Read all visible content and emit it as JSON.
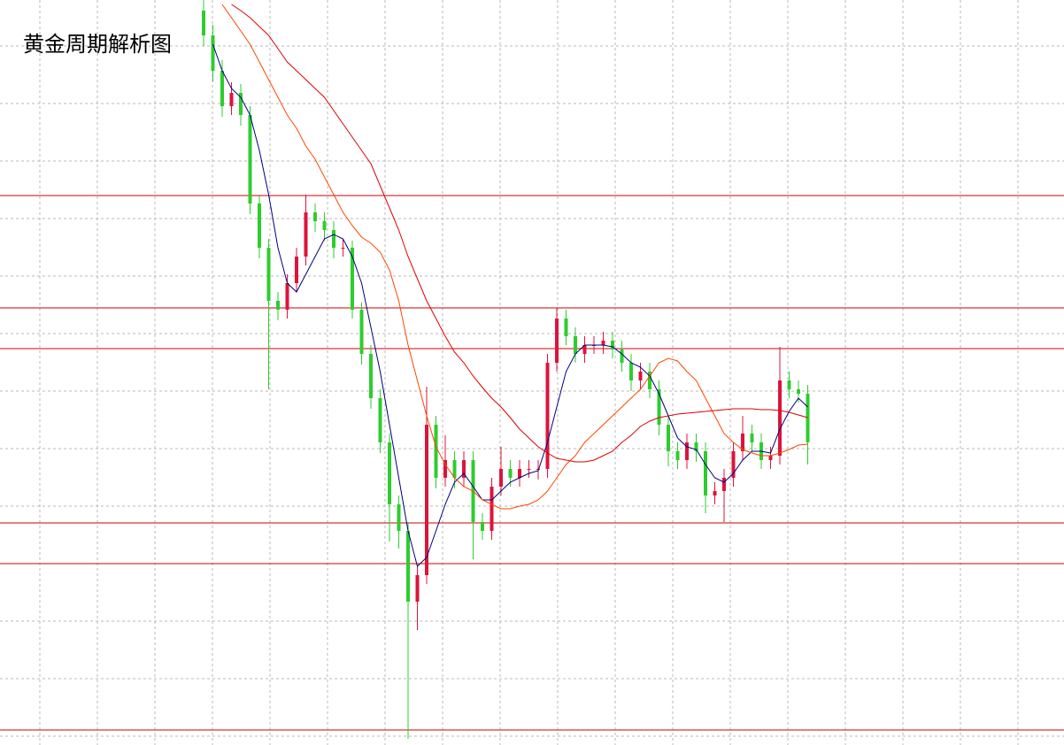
{
  "chart_data": {
    "type": "candlestick",
    "title": "黄金周期解析图",
    "ylim": [
      0,
      842
    ],
    "yticks": [
      790,
      725,
      660,
      595,
      530,
      465,
      400,
      335,
      270,
      205,
      140,
      75,
      10
    ],
    "grid": true,
    "up_color": "#dc143c",
    "down_color": "#2ecc2e",
    "open": [
      830,
      802,
      762,
      722,
      737,
      712,
      612,
      562,
      502,
      492,
      522,
      552,
      602,
      592,
      582,
      562,
      562,
      492,
      442,
      392,
      342,
      272,
      242,
      162,
      192,
      362,
      302,
      322,
      302,
      322,
      252,
      242,
      292,
      312,
      302,
      312,
      312,
      312,
      432,
      482,
      462,
      442,
      452,
      452,
      457,
      447,
      432,
      412,
      422,
      402,
      362,
      332,
      322,
      342,
      332,
      282,
      287,
      302,
      332,
      352,
      342,
      322,
      327,
      412,
      402,
      397
    ],
    "high": [
      842,
      814,
      774,
      749,
      747,
      722,
      622,
      572,
      512,
      532,
      562,
      622,
      612,
      602,
      592,
      572,
      570,
      500,
      452,
      402,
      352,
      282,
      252,
      202,
      405,
      372,
      350,
      332,
      332,
      332,
      262,
      302,
      337,
      322,
      322,
      322,
      322,
      442,
      494,
      492,
      472,
      462,
      462,
      467,
      467,
      457,
      442,
      432,
      432,
      412,
      372,
      342,
      352,
      352,
      342,
      297,
      312,
      342,
      372,
      362,
      352,
      337,
      450,
      422,
      412,
      407
    ],
    "low": [
      790,
      750,
      710,
      712,
      700,
      600,
      550,
      402,
      480,
      482,
      512,
      542,
      580,
      570,
      550,
      552,
      482,
      430,
      380,
      330,
      230,
      222,
      7,
      130,
      182,
      290,
      292,
      290,
      292,
      210,
      232,
      232,
      282,
      292,
      292,
      302,
      300,
      302,
      422,
      452,
      432,
      432,
      442,
      442,
      437,
      422,
      400,
      402,
      392,
      350,
      315,
      312,
      312,
      320,
      262,
      272,
      252,
      292,
      322,
      332,
      312,
      312,
      317,
      392,
      387,
      317
    ],
    "close": [
      802,
      762,
      722,
      737,
      712,
      612,
      562,
      502,
      492,
      522,
      552,
      602,
      592,
      582,
      562,
      562,
      492,
      442,
      392,
      342,
      272,
      242,
      162,
      192,
      362,
      302,
      322,
      302,
      322,
      252,
      242,
      292,
      312,
      302,
      312,
      312,
      312,
      432,
      482,
      462,
      442,
      452,
      452,
      457,
      447,
      432,
      412,
      422,
      402,
      362,
      332,
      322,
      342,
      332,
      282,
      287,
      302,
      332,
      352,
      342,
      322,
      327,
      412,
      402,
      397,
      342
    ],
    "lines": [
      {
        "color": "#000080",
        "values": [
          null,
          792,
          762,
          742,
          732,
          712,
          672,
          622,
          562,
          522,
          512,
          532,
          552,
          572,
          577,
          572,
          552,
          522,
          472,
          422,
          362,
          302,
          242,
          202,
          212,
          242,
          272,
          297,
          307,
          292,
          277,
          277,
          287,
          297,
          302,
          307,
          310,
          342,
          382,
          422,
          442,
          452,
          452,
          452,
          450,
          442,
          432,
          427,
          417,
          397,
          372,
          347,
          337,
          334,
          317,
          302,
          297,
          307,
          322,
          332,
          332,
          330,
          357,
          377,
          392,
          382
        ]
      },
      {
        "color": "#ff4500",
        "values": [
          null,
          null,
          837,
          822,
          807,
          792,
          772,
          752,
          732,
          712,
          697,
          677,
          662,
          642,
          622,
          602,
          587,
          574,
          567,
          557,
          537,
          502,
          452,
          412,
          372,
          337,
          317,
          302,
          292,
          287,
          277,
          272,
          267,
          267,
          270,
          272,
          277,
          287,
          302,
          317,
          327,
          342,
          352,
          362,
          372,
          382,
          392,
          402,
          417,
          432,
          437,
          434,
          422,
          412,
          392,
          372,
          352,
          342,
          334,
          330,
          327,
          327,
          330,
          334,
          339,
          340
        ]
      },
      {
        "color": "#e00000",
        "values": [
          null,
          null,
          null,
          837,
          830,
          822,
          812,
          802,
          787,
          772,
          762,
          752,
          742,
          732,
          717,
          702,
          687,
          672,
          657,
          632,
          607,
          582,
          552,
          527,
          502,
          482,
          462,
          444,
          432,
          417,
          404,
          392,
          382,
          370,
          357,
          347,
          337,
          330,
          324,
          322,
          320,
          320,
          322,
          327,
          332,
          342,
          350,
          360,
          366,
          370,
          372,
          374,
          375,
          376,
          377,
          378,
          379,
          380,
          380,
          380,
          379,
          379,
          378,
          376,
          373,
          370
        ]
      }
    ],
    "levels": [
      621,
      494,
      448,
      251,
      205,
      17
    ],
    "level_color": "#d00000"
  }
}
